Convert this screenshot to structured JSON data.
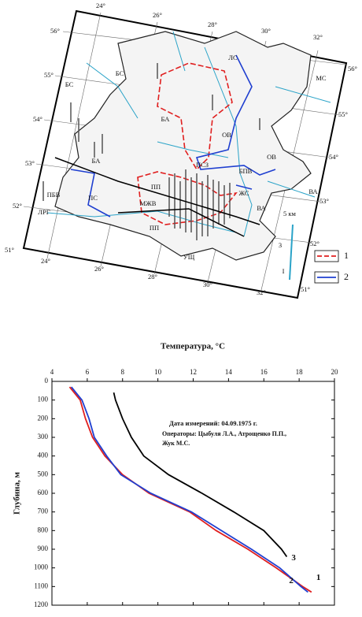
{
  "map": {
    "lon_top": [
      "24°",
      "26°",
      "28°",
      "30°",
      "32°"
    ],
    "lat_left": [
      "56°",
      "55°",
      "54°",
      "53°",
      "52°",
      "51°"
    ],
    "lon_bottom": [
      "24°",
      "26°",
      "28°",
      "30°",
      "32°"
    ],
    "lat_right": [
      "56°",
      "55°",
      "54°",
      "53°",
      "52°",
      "51°"
    ],
    "regions": [
      "ЛС",
      "БС",
      "БС",
      "МС",
      "БА",
      "ОВ",
      "БА",
      "ПСЗ",
      "ОВ",
      "БПВ",
      "ПП",
      "ПБВ",
      "ПС",
      "ЖС",
      "ВА",
      "МЖВ",
      "ПП",
      "ВА",
      "ЛРГ",
      "УЩ",
      "5 км",
      "3",
      "I"
    ],
    "legend": [
      "1",
      "2"
    ]
  },
  "chart_data": {
    "type": "line",
    "x_label": "Температура, °С",
    "y_label": "Глубина, м",
    "annotation": [
      "Дата измерений: 04.09.1975 г.",
      "Операторы: Цыбуля Л.А., Атрощенко П.П.,",
      "Жук М.С."
    ],
    "xlim": [
      4,
      20
    ],
    "xticks": [
      4,
      6,
      8,
      10,
      12,
      14,
      16,
      18,
      20
    ],
    "ylim": [
      1200,
      0
    ],
    "yticks": [
      0,
      100,
      200,
      300,
      400,
      500,
      600,
      700,
      800,
      900,
      1000,
      1100,
      1200
    ],
    "series": [
      {
        "name": "1",
        "color": "#e01f1f",
        "x": [
          5.0,
          5.6,
          5.9,
          6.3,
          7.0,
          8.0,
          9.5,
          11.8,
          13.3,
          15.1,
          16.7,
          18.2,
          18.7
        ],
        "y": [
          30,
          100,
          200,
          300,
          400,
          500,
          600,
          700,
          800,
          900,
          1000,
          1100,
          1130
        ]
      },
      {
        "name": "2",
        "color": "#1f3fd0",
        "x": [
          5.1,
          5.7,
          6.1,
          6.4,
          7.1,
          7.9,
          9.6,
          11.9,
          13.6,
          15.3,
          16.9,
          18.1,
          18.5
        ],
        "y": [
          30,
          100,
          200,
          300,
          400,
          500,
          600,
          700,
          800,
          900,
          1000,
          1100,
          1130
        ]
      },
      {
        "name": "3",
        "color": "#000000",
        "x": [
          7.5,
          7.6,
          8.0,
          8.5,
          9.2,
          10.6,
          12.5,
          14.3,
          16.0,
          17.0,
          17.3
        ],
        "y": [
          60,
          100,
          200,
          300,
          400,
          500,
          600,
          700,
          800,
          900,
          940
        ]
      }
    ]
  }
}
